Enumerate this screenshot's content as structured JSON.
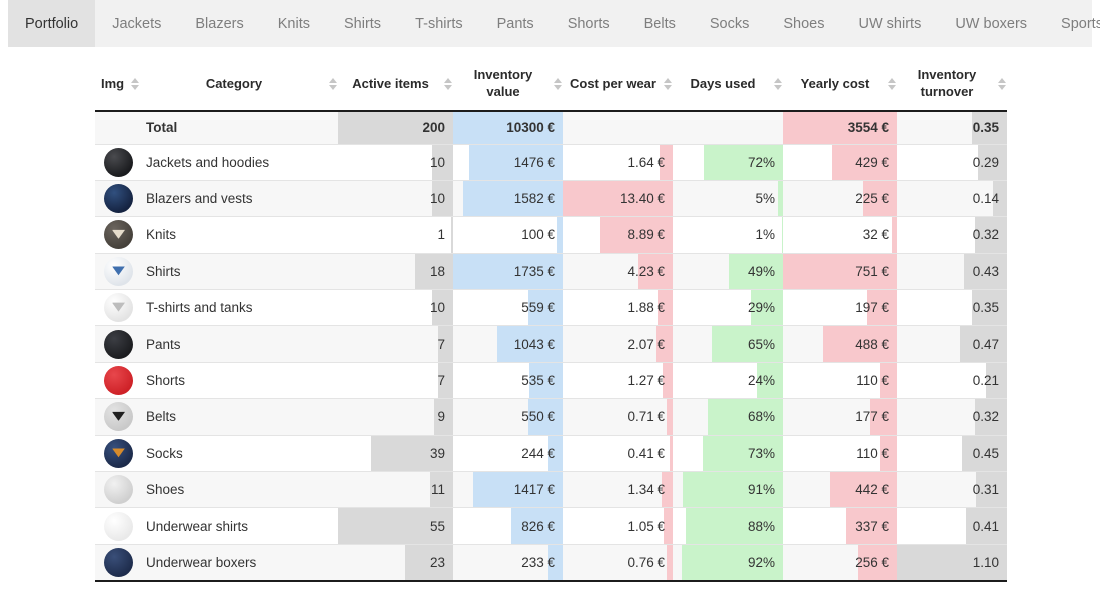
{
  "tabbar": {
    "tabs": [
      {
        "label": "Portfolio",
        "active": true
      },
      {
        "label": "Jackets",
        "active": false
      },
      {
        "label": "Blazers",
        "active": false
      },
      {
        "label": "Knits",
        "active": false
      },
      {
        "label": "Shirts",
        "active": false
      },
      {
        "label": "T-shirts",
        "active": false
      },
      {
        "label": "Pants",
        "active": false
      },
      {
        "label": "Shorts",
        "active": false
      },
      {
        "label": "Belts",
        "active": false
      },
      {
        "label": "Socks",
        "active": false
      },
      {
        "label": "Shoes",
        "active": false
      },
      {
        "label": "UW shirts",
        "active": false
      },
      {
        "label": "UW boxers",
        "active": false
      },
      {
        "label": "Sportswear",
        "active": false
      }
    ]
  },
  "table": {
    "columns": [
      {
        "key": "img",
        "label": "Img"
      },
      {
        "key": "category",
        "label": "Category"
      },
      {
        "key": "active",
        "label": "Active items",
        "bar": "gray",
        "decimals": 0,
        "suffix": ""
      },
      {
        "key": "inventory",
        "label": "Inventory value",
        "bar": "blue",
        "decimals": 0,
        "suffix": " €"
      },
      {
        "key": "cost",
        "label": "Cost per wear",
        "bar": "pink",
        "decimals": 2,
        "suffix": " €"
      },
      {
        "key": "days",
        "label": "Days used",
        "bar": "green",
        "decimals": 0,
        "suffix": "%",
        "scale": 100
      },
      {
        "key": "yearly",
        "label": "Yearly cost",
        "bar": "pink",
        "decimals": 0,
        "suffix": " €"
      },
      {
        "key": "turnover",
        "label": "Inventory turnover",
        "bar": "gray",
        "decimals": 2,
        "suffix": ""
      }
    ],
    "total": {
      "category": "Total",
      "active": 200,
      "inventory": 10300,
      "cost": null,
      "days": null,
      "yearly": 3554,
      "turnover": 0.35
    },
    "rows": [
      {
        "category": "Jackets and hoodies",
        "active": 10,
        "inventory": 1476,
        "cost": 1.64,
        "days": 72,
        "yearly": 429,
        "turnover": 0.29,
        "img": {
          "name": "jacket",
          "base": "#1a1b1e",
          "hi": "#4a4b4f"
        }
      },
      {
        "category": "Blazers and vests",
        "active": 10,
        "inventory": 1582,
        "cost": 13.4,
        "days": 5,
        "yearly": 225,
        "turnover": 0.14,
        "img": {
          "name": "blazer",
          "base": "#152341",
          "hi": "#31507f"
        }
      },
      {
        "category": "Knits",
        "active": 1,
        "inventory": 100,
        "cost": 8.89,
        "days": 1,
        "yearly": 32,
        "turnover": 0.32,
        "img": {
          "name": "knit",
          "base": "#45403a",
          "hi": "#6b655e",
          "accent": "#e6dccb"
        }
      },
      {
        "category": "Shirts",
        "active": 18,
        "inventory": 1735,
        "cost": 4.23,
        "days": 49,
        "yearly": 751,
        "turnover": 0.43,
        "img": {
          "name": "shirt",
          "base": "#dfe4ea",
          "hi": "#ffffff",
          "accent": "#3f6fae"
        }
      },
      {
        "category": "T-shirts and tanks",
        "active": 10,
        "inventory": 559,
        "cost": 1.88,
        "days": 29,
        "yearly": 197,
        "turnover": 0.35,
        "img": {
          "name": "tshirt",
          "base": "#e3e3e3",
          "hi": "#ffffff",
          "accent": "#bdbdbd"
        }
      },
      {
        "category": "Pants",
        "active": 7,
        "inventory": 1043,
        "cost": 2.07,
        "days": 65,
        "yearly": 488,
        "turnover": 0.47,
        "img": {
          "name": "pants",
          "base": "#1b1c1f",
          "hi": "#3c3e44"
        }
      },
      {
        "category": "Shorts",
        "active": 7,
        "inventory": 535,
        "cost": 1.27,
        "days": 24,
        "yearly": 110,
        "turnover": 0.21,
        "img": {
          "name": "shorts",
          "base": "#ce2127",
          "hi": "#e8474c"
        }
      },
      {
        "category": "Belts",
        "active": 9,
        "inventory": 550,
        "cost": 0.71,
        "days": 68,
        "yearly": 177,
        "turnover": 0.32,
        "img": {
          "name": "belt",
          "base": "#c9c9c9",
          "hi": "#e3e3e3",
          "accent": "#1f1f1f"
        }
      },
      {
        "category": "Socks",
        "active": 39,
        "inventory": 244,
        "cost": 0.41,
        "days": 73,
        "yearly": 110,
        "turnover": 0.45,
        "img": {
          "name": "socks",
          "base": "#1c2a4a",
          "hi": "#37507e",
          "accent": "#d78b2b"
        }
      },
      {
        "category": "Shoes",
        "active": 11,
        "inventory": 1417,
        "cost": 1.34,
        "days": 91,
        "yearly": 442,
        "turnover": 0.31,
        "img": {
          "name": "shoe",
          "base": "#cfcfcf",
          "hi": "#f1f1f1"
        }
      },
      {
        "category": "Underwear shirts",
        "active": 55,
        "inventory": 826,
        "cost": 1.05,
        "days": 88,
        "yearly": 337,
        "turnover": 0.41,
        "img": {
          "name": "undershirt",
          "base": "#e9e9e9",
          "hi": "#ffffff"
        }
      },
      {
        "category": "Underwear boxers",
        "active": 23,
        "inventory": 233,
        "cost": 0.76,
        "days": 92,
        "yearly": 256,
        "turnover": 1.1,
        "img": {
          "name": "boxers",
          "base": "#1e2c4c",
          "hi": "#3a4f79"
        }
      }
    ]
  },
  "palette": {
    "blue": "#c8e0f6",
    "pink": "#f8c8cc",
    "green": "#c9f3ca",
    "gray": "#d9d9d9",
    "row_alt": "#f7f7f7",
    "tab_bg": "#f1f1f1",
    "tab_active_bg": "#e2e2e2",
    "dark_border": "#1c1c1c"
  }
}
